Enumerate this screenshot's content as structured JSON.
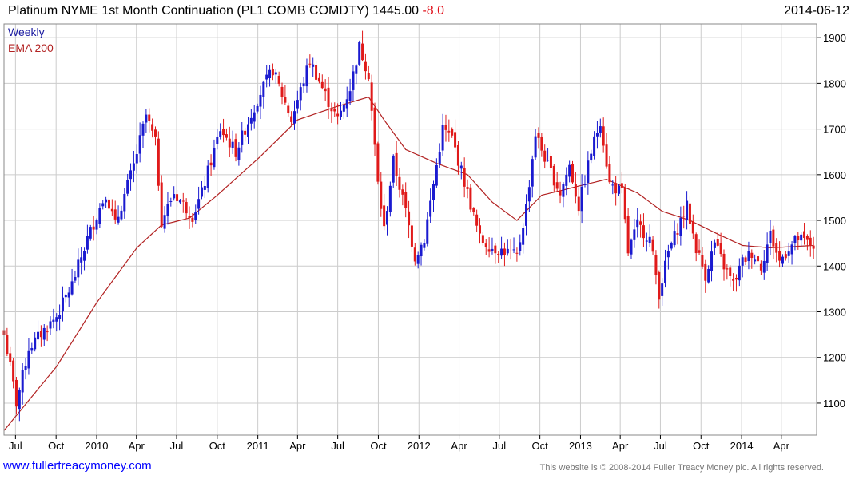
{
  "header": {
    "title": "Platinum NYME 1st Month Continuation (PL1 COMB COMDTY)",
    "last_price": "1445.00",
    "change": "-8.0",
    "date": "2014-06-12"
  },
  "footer": {
    "url": "www.fullertreacymoney.com",
    "copyright": "This website is © 2008-2014 Fuller Treacy Money plc. All rights reserved."
  },
  "colors": {
    "up_candle": "#1a1ad0",
    "down_candle": "#e01a1a",
    "ema_line": "#b22222",
    "grid": "#cccccc",
    "frame": "#888888"
  },
  "chart_data": {
    "type": "candlestick",
    "interval": "Weekly",
    "legend": [
      "Weekly",
      "EMA 200"
    ],
    "legend_position": "top-left",
    "ylim": [
      1030,
      1930
    ],
    "y_ticks": [
      1100,
      1200,
      1300,
      1400,
      1500,
      1600,
      1700,
      1800,
      1900
    ],
    "y_axis_side": "right",
    "xlim": [
      "2009-06-05",
      "2014-06-20"
    ],
    "x_ticks": [
      {
        "date": "2009-07-01",
        "label": "Jul"
      },
      {
        "date": "2009-10-01",
        "label": "Oct"
      },
      {
        "date": "2010-01-01",
        "label": "2010"
      },
      {
        "date": "2010-04-01",
        "label": "Apr"
      },
      {
        "date": "2010-07-01",
        "label": "Jul"
      },
      {
        "date": "2010-10-01",
        "label": "Oct"
      },
      {
        "date": "2011-01-01",
        "label": "2011"
      },
      {
        "date": "2011-04-01",
        "label": "Apr"
      },
      {
        "date": "2011-07-01",
        "label": "Jul"
      },
      {
        "date": "2011-10-01",
        "label": "Oct"
      },
      {
        "date": "2012-01-01",
        "label": "2012"
      },
      {
        "date": "2012-04-01",
        "label": "Apr"
      },
      {
        "date": "2012-07-01",
        "label": "Jul"
      },
      {
        "date": "2012-10-01",
        "label": "Oct"
      },
      {
        "date": "2013-01-01",
        "label": "2013"
      },
      {
        "date": "2013-04-01",
        "label": "Apr"
      },
      {
        "date": "2013-07-01",
        "label": "Jul"
      },
      {
        "date": "2013-10-01",
        "label": "Oct"
      },
      {
        "date": "2014-01-01",
        "label": "2014"
      },
      {
        "date": "2014-04-01",
        "label": "Apr"
      }
    ],
    "close_anchors": [
      [
        "2009-06-05",
        1250
      ],
      [
        "2009-06-19",
        1180
      ],
      [
        "2009-07-03",
        1100
      ],
      [
        "2009-07-31",
        1220
      ],
      [
        "2009-09-04",
        1260
      ],
      [
        "2009-10-02",
        1290
      ],
      [
        "2009-11-06",
        1360
      ],
      [
        "2009-12-11",
        1460
      ],
      [
        "2010-01-22",
        1560
      ],
      [
        "2010-02-12",
        1490
      ],
      [
        "2010-03-26",
        1620
      ],
      [
        "2010-04-23",
        1730
      ],
      [
        "2010-05-14",
        1670
      ],
      [
        "2010-05-28",
        1500
      ],
      [
        "2010-06-25",
        1560
      ],
      [
        "2010-08-06",
        1510
      ],
      [
        "2010-08-27",
        1560
      ],
      [
        "2010-10-08",
        1700
      ],
      [
        "2010-11-12",
        1650
      ],
      [
        "2010-12-03",
        1700
      ],
      [
        "2011-01-07",
        1780
      ],
      [
        "2011-02-04",
        1830
      ],
      [
        "2011-03-18",
        1720
      ],
      [
        "2011-04-29",
        1850
      ],
      [
        "2011-06-10",
        1760
      ],
      [
        "2011-07-01",
        1720
      ],
      [
        "2011-07-29",
        1790
      ],
      [
        "2011-08-19",
        1880
      ],
      [
        "2011-09-09",
        1820
      ],
      [
        "2011-09-30",
        1580
      ],
      [
        "2011-10-14",
        1480
      ],
      [
        "2011-11-04",
        1630
      ],
      [
        "2011-12-02",
        1520
      ],
      [
        "2011-12-23",
        1420
      ],
      [
        "2012-01-13",
        1460
      ],
      [
        "2012-02-10",
        1620
      ],
      [
        "2012-02-24",
        1700
      ],
      [
        "2012-03-16",
        1680
      ],
      [
        "2012-04-20",
        1560
      ],
      [
        "2012-05-18",
        1460
      ],
      [
        "2012-06-15",
        1440
      ],
      [
        "2012-07-20",
        1430
      ],
      [
        "2012-08-10",
        1420
      ],
      [
        "2012-08-31",
        1530
      ],
      [
        "2012-09-21",
        1690
      ],
      [
        "2012-10-19",
        1620
      ],
      [
        "2012-11-16",
        1560
      ],
      [
        "2012-12-07",
        1620
      ],
      [
        "2012-12-28",
        1530
      ],
      [
        "2013-01-25",
        1650
      ],
      [
        "2013-02-15",
        1720
      ],
      [
        "2013-03-08",
        1580
      ],
      [
        "2013-04-05",
        1560
      ],
      [
        "2013-04-19",
        1430
      ],
      [
        "2013-05-10",
        1490
      ],
      [
        "2013-06-07",
        1460
      ],
      [
        "2013-06-28",
        1340
      ],
      [
        "2013-07-19",
        1430
      ],
      [
        "2013-08-16",
        1500
      ],
      [
        "2013-08-30",
        1530
      ],
      [
        "2013-09-20",
        1440
      ],
      [
        "2013-10-11",
        1380
      ],
      [
        "2013-11-01",
        1450
      ],
      [
        "2013-11-22",
        1400
      ],
      [
        "2013-12-13",
        1360
      ],
      [
        "2014-01-03",
        1410
      ],
      [
        "2014-01-24",
        1430
      ],
      [
        "2014-02-14",
        1400
      ],
      [
        "2014-03-07",
        1470
      ],
      [
        "2014-03-28",
        1410
      ],
      [
        "2014-04-18",
        1440
      ],
      [
        "2014-05-09",
        1460
      ],
      [
        "2014-06-13",
        1445
      ]
    ],
    "ema_anchors": [
      [
        "2009-06-05",
        1040
      ],
      [
        "2009-10-02",
        1180
      ],
      [
        "2010-01-01",
        1320
      ],
      [
        "2010-04-02",
        1440
      ],
      [
        "2010-05-28",
        1490
      ],
      [
        "2010-07-30",
        1505
      ],
      [
        "2010-10-01",
        1555
      ],
      [
        "2011-01-07",
        1640
      ],
      [
        "2011-04-01",
        1720
      ],
      [
        "2011-07-01",
        1750
      ],
      [
        "2011-09-09",
        1770
      ],
      [
        "2011-10-14",
        1720
      ],
      [
        "2011-12-02",
        1655
      ],
      [
        "2012-02-10",
        1625
      ],
      [
        "2012-04-20",
        1600
      ],
      [
        "2012-06-15",
        1540
      ],
      [
        "2012-08-10",
        1500
      ],
      [
        "2012-10-05",
        1555
      ],
      [
        "2012-12-07",
        1570
      ],
      [
        "2013-03-01",
        1590
      ],
      [
        "2013-05-10",
        1560
      ],
      [
        "2013-07-05",
        1520
      ],
      [
        "2013-09-06",
        1500
      ],
      [
        "2013-11-08",
        1470
      ],
      [
        "2014-01-03",
        1445
      ],
      [
        "2014-03-07",
        1440
      ],
      [
        "2014-06-13",
        1445
      ]
    ]
  }
}
